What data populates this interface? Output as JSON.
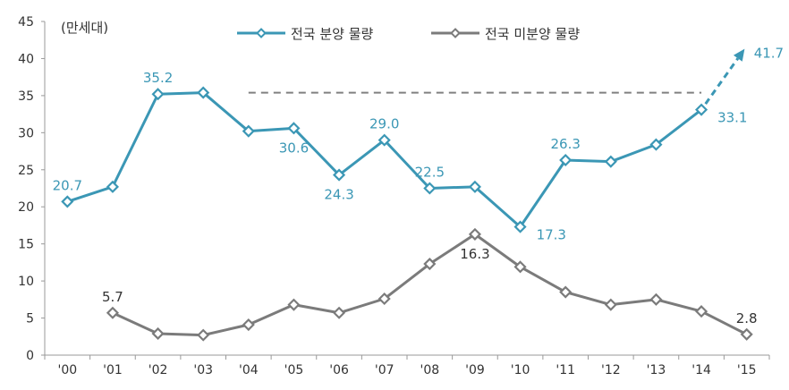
{
  "chart_data": {
    "type": "line",
    "unit_label": "(만세대)",
    "categories": [
      "'00",
      "'01",
      "'02",
      "'03",
      "'04",
      "'05",
      "'06",
      "'07",
      "'08",
      "'09",
      "'10",
      "'11",
      "'12",
      "'13",
      "'14",
      "'15"
    ],
    "ylim": [
      0,
      45
    ],
    "yticks": [
      0,
      5,
      10,
      15,
      20,
      25,
      30,
      35,
      40,
      45
    ],
    "grid": false,
    "legend_position": "top-center",
    "series": [
      {
        "name": "전국 분양 물량",
        "color": "#3b97b5",
        "values": [
          20.7,
          22.7,
          35.2,
          35.4,
          30.2,
          30.6,
          24.3,
          29.0,
          22.5,
          22.7,
          17.3,
          26.3,
          26.1,
          28.4,
          33.1,
          null
        ]
      },
      {
        "name": "전국 미분양 물량",
        "color": "#7b7b7b",
        "values": [
          null,
          5.7,
          2.9,
          2.7,
          4.1,
          6.8,
          5.7,
          7.6,
          12.3,
          16.3,
          11.9,
          8.5,
          6.8,
          7.5,
          5.9,
          2.8
        ]
      }
    ],
    "projection": {
      "from_category": "'14",
      "from_value": 33.1,
      "to_category": "'15",
      "to_value": 41.7,
      "color": "#3b97b5"
    },
    "reference_line": {
      "value": 35.4,
      "from_category": "'04",
      "to_category": "'14",
      "color": "#808080"
    },
    "data_labels": [
      {
        "series": 0,
        "category": "'00",
        "text": "20.7",
        "pos": "above"
      },
      {
        "series": 0,
        "category": "'02",
        "text": "35.2",
        "pos": "above"
      },
      {
        "series": 0,
        "category": "'05",
        "text": "30.6",
        "pos": "below"
      },
      {
        "series": 0,
        "category": "'06",
        "text": "24.3",
        "pos": "below"
      },
      {
        "series": 0,
        "category": "'07",
        "text": "29.0",
        "pos": "above"
      },
      {
        "series": 0,
        "category": "'08",
        "text": "22.5",
        "pos": "above"
      },
      {
        "series": 0,
        "category": "'10",
        "text": "17.3",
        "pos": "right"
      },
      {
        "series": 0,
        "category": "'11",
        "text": "26.3",
        "pos": "above"
      },
      {
        "series": 0,
        "category": "'14",
        "text": "33.1",
        "pos": "right"
      },
      {
        "series": 0,
        "category": "'15",
        "text": "41.7",
        "pos": "projection"
      },
      {
        "series": 1,
        "category": "'01",
        "text": "5.7",
        "pos": "above"
      },
      {
        "series": 1,
        "category": "'09",
        "text": "16.3",
        "pos": "below"
      },
      {
        "series": 1,
        "category": "'15",
        "text": "2.8",
        "pos": "above"
      }
    ]
  }
}
